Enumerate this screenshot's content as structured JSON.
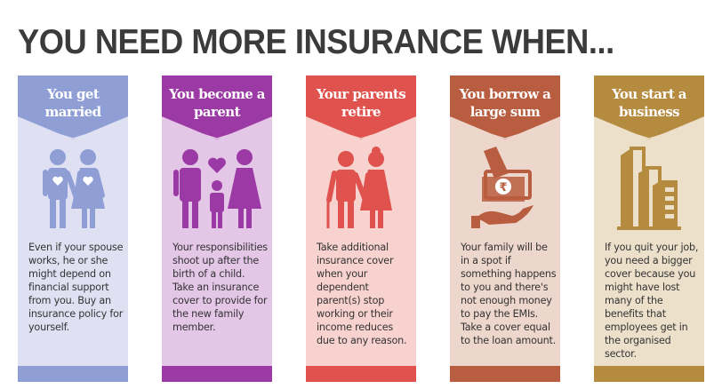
{
  "title": "YOU NEED MORE INSURANCE WHEN...",
  "cards": [
    {
      "heading": "You get married",
      "icon": "couple-icon",
      "text": "Even if your spouse works, he or she might depend on financial support from you. Buy an insurance policy for yourself.",
      "accent": "#8f9fd6",
      "background": "#dfe1f3"
    },
    {
      "heading": "You become a parent",
      "icon": "family-icon",
      "text": "Your responsibilities shoot up after the birth of a child. Take an insurance cover to provide for the new family member.",
      "accent": "#9b3aa4",
      "background": "#e4c6e7"
    },
    {
      "heading": "Your parents retire",
      "icon": "elderly-couple-icon",
      "text": "Take additional insurance cover when your dependent parent(s) stop working or their income reduces due to any reason.",
      "accent": "#e0524e",
      "background": "#f7d2ce"
    },
    {
      "heading": "You borrow a large sum",
      "icon": "loan-money-hand-icon",
      "text": "Your family will be in a spot if something happens to you and there's not enough money to pay the EMIs. Take a cover equal to the loan amount.",
      "accent": "#b85d3f",
      "background": "#edd6cc"
    },
    {
      "heading": "You start a business",
      "icon": "office-building-icon",
      "text": "If you quit your job, you need a bigger cover because you might have lost many of the benefits that employees get in the organised sector.",
      "accent": "#b58b40",
      "background": "#ece0cb"
    }
  ]
}
